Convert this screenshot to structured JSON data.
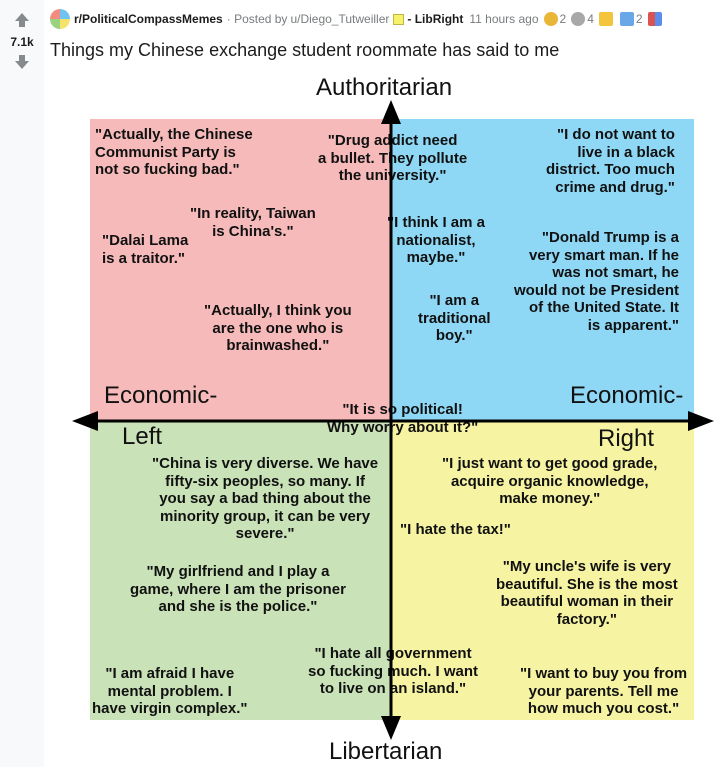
{
  "post": {
    "vote_count": "7.1k",
    "subreddit": "r/PoliticalCompassMemes",
    "posted_by": "· Posted by",
    "author": "u/Diego_Tutweiller",
    "flair": "- LibRight",
    "time": "11 hours ago",
    "awards": [
      {
        "icon": "gold-medal-icon",
        "count": "2",
        "color": "#e9b638"
      },
      {
        "icon": "silver-s-icon",
        "count": "4",
        "color": "#a8a8a8"
      },
      {
        "icon": "star-card-icon",
        "count": "",
        "color": "#f2c53d"
      },
      {
        "icon": "blue-card-icon",
        "count": "2",
        "color": "#6aa7e8"
      },
      {
        "icon": "grid-flag-icon",
        "count": "",
        "color": "#d9534f"
      }
    ],
    "title": "Things my Chinese exchange student roommate has said to me"
  },
  "compass": {
    "top": "Authoritarian",
    "bottom": "Libertarian",
    "left_top": "Economic-",
    "left_bottom": "Left",
    "right_top": "Economic-",
    "right_bottom": "Right",
    "colors": {
      "auth_left": "#f6baba",
      "auth_right": "#8ed8f6",
      "lib_left": "#c9e2b8",
      "lib_right": "#f6f3a3"
    },
    "quotes": [
      "\"Actually, the Chinese\nCommunist Party is\nnot so fucking bad.\"",
      "\"Drug addict need\na bullet. They pollute\nthe university.\"",
      "\"I do not want to\nlive in a black\ndistrict. Too much\ncrime and drug.\"",
      "\"In reality, Taiwan\nis China's.\"",
      "\"Dalai Lama\nis a traitor.\"",
      "\"I think I am a\nnationalist,\nmaybe.\"",
      "\"Donald Trump is a\nvery smart man. If he\nwas not smart, he\nwould not be President\nof the United State. It\nis apparent.\"",
      "\"I am a\ntraditional\nboy.\"",
      "\"Actually, I think you\nare the one who is\nbrainwashed.\"",
      "\"It is so political!\nWhy worry about it?\"",
      "\"China is very diverse. We have\nfifty-six peoples, so many. If\nyou say a bad thing about the\nminority group, it can be very\nsevere.\"",
      "\"I just want to get good grade,\nacquire organic knowledge,\nmake money.\"",
      "\"I hate the tax!\"",
      "\"My girlfriend and I play a\ngame, where I am the prisoner\nand she is the police.\"",
      "\"My uncle's wife is very\nbeautiful. She is the most\nbeautiful woman in their\nfactory.\"",
      "\"I hate all government\nso fucking much. I want\nto live on an island.\"",
      "\"I am afraid I have\nmental problem. I\nhave virgin complex.\"",
      "\"I want to buy you from\nyour parents. Tell me\nhow much you cost.\""
    ]
  }
}
